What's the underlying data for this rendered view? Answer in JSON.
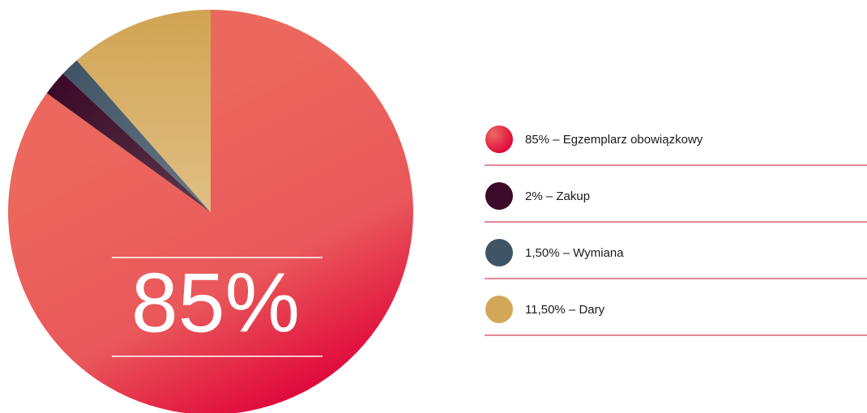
{
  "chart_data": {
    "type": "pie",
    "categories": [
      "85% – Egzemplarz obowiązkowy",
      "2% – Zakup",
      "1,50% – Wymiana",
      "11,50% – Dary"
    ],
    "values": [
      85,
      2,
      1.5,
      11.5
    ],
    "colors": [
      "#e4163f",
      "#3c0a2b",
      "#3f5566",
      "#d3a659"
    ],
    "center_label": "85%",
    "legend": "right"
  }
}
